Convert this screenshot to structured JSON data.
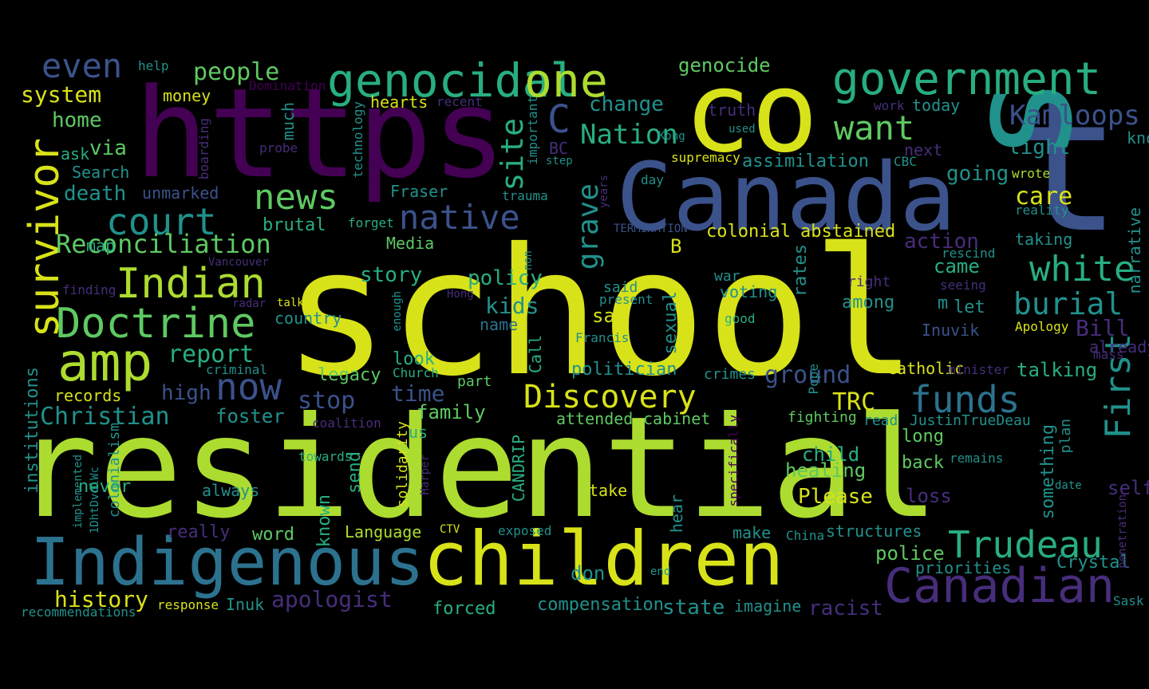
{
  "words": [
    "school",
    "residential",
    "https",
    "co",
    "t",
    "Canada",
    "s",
    "children",
    "Indigenous",
    "Canadian",
    "government",
    "genocidal",
    "one",
    "news",
    "amp",
    "Doctrine",
    "Indian",
    "survivor",
    "court",
    "native",
    "want",
    "white",
    "even",
    "Discovery",
    "First",
    "funds",
    "Trudeau",
    "burial",
    "Kamloops",
    "now",
    "Reconciliation",
    "C",
    "Nation",
    "site",
    "grave",
    "care",
    "people",
    "system",
    "home",
    "via",
    "Search",
    "death",
    "report",
    "Christian",
    "high",
    "records",
    "genocide",
    "change",
    "assimilation",
    "going",
    "light",
    "know",
    "wrote",
    "reality",
    "narrative",
    "action",
    "taking",
    "came",
    "rescind",
    "TRC",
    "history",
    "apologist",
    "Language",
    "word",
    "police",
    "compensation",
    "state",
    "racist",
    "stop",
    "time",
    "family",
    "foster",
    "attended",
    "cabinet",
    "fighting",
    "read",
    "JustinTrueDeau",
    "long",
    "child",
    "healing",
    "Please",
    "back",
    "remains",
    "something",
    "plan",
    "self",
    "loss",
    "don",
    "priorities",
    "Crystal",
    "forced",
    "imagine",
    "Inuk",
    "response",
    "recommendations",
    "Sask",
    "policy",
    "kids",
    "story",
    "say",
    "name",
    "voting",
    "war",
    "said",
    "present",
    "sexual",
    "colonial",
    "abstained",
    "B",
    "among",
    "right",
    "let",
    "m",
    "Bill",
    "Inuvik",
    "Apology",
    "already",
    "mass",
    "talking",
    "Catholic",
    "ground",
    "politician",
    "legacy",
    "criminal",
    "look",
    "Church",
    "part",
    "us",
    "solidarity",
    "Harper",
    "CANDRIP",
    "known",
    "send",
    "never",
    "always",
    "really",
    "CTV",
    "exposed",
    "make",
    "China",
    "structures",
    "end",
    "penetration",
    "date",
    "towards",
    "colonialism",
    "implemented",
    "1DhtDvdlWc",
    "institutions",
    "coalition",
    "specifically",
    "hear",
    "take",
    "crimes",
    "minister",
    "Pope",
    "good",
    "Francis",
    "Call",
    "enough",
    "Hong",
    "non",
    "Media",
    "brutal",
    "forget",
    "TERMINATION",
    "years",
    "trauma",
    "Fraser",
    "unmarked",
    "ask",
    "map",
    "finding",
    "Vancouver",
    "radar",
    "talk",
    "country",
    "boarding",
    "probe",
    "technology",
    "much",
    "hearts",
    "recent",
    "money",
    "help",
    "Domination",
    "important",
    "BC",
    "step",
    "Kong",
    "truth",
    "used",
    "supremacy",
    "day",
    "CBC",
    "next",
    "work",
    "today",
    "rates",
    "seeing",
    "mass"
  ],
  "palette": {
    "yellow": "#d8e219",
    "lime": "#addc30",
    "green": "#5ec962",
    "teal_green": "#28ae80",
    "teal": "#21918c",
    "blue_teal": "#2c728e",
    "blue": "#3b528b",
    "indigo": "#472d7b",
    "purple": "#440154",
    "background": "#000000"
  }
}
